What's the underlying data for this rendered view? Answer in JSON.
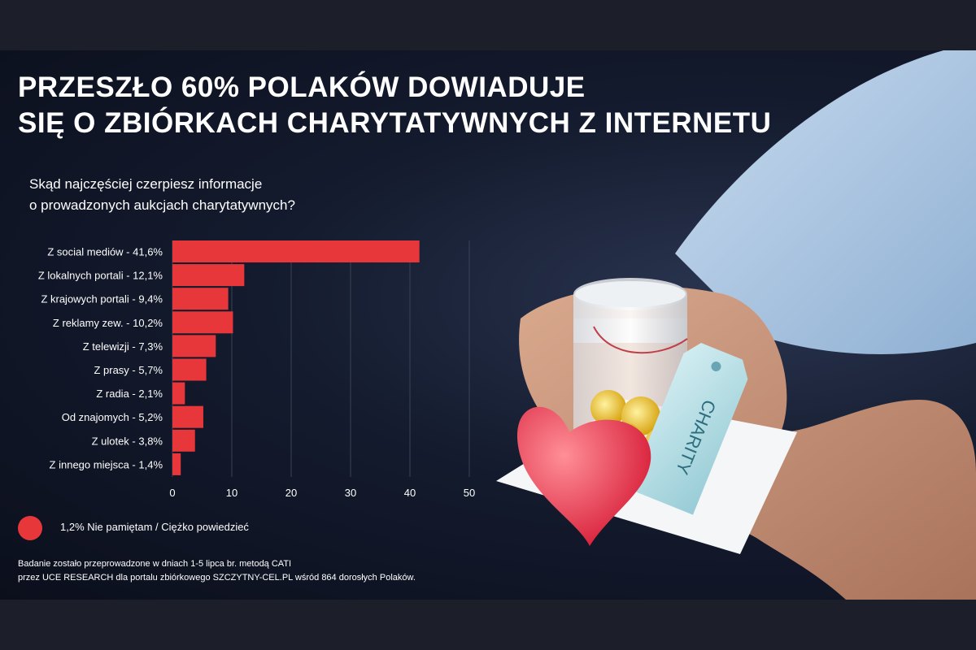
{
  "title": {
    "line1": "PRZESZŁO 60% POLAKÓW DOWIADUJE",
    "line2": "SIĘ O ZBIÓRKACH CHARYTATYWNYCH Z INTERNETU"
  },
  "question": {
    "line1": "Skąd najczęściej czerpiesz informacje",
    "line2": "o prowadzonych aukcjach charytatywnych?"
  },
  "chart_data": {
    "type": "bar",
    "orientation": "horizontal",
    "categories": [
      "Z social mediów - 41,6%",
      "Z lokalnych portali - 12,1%",
      "Z krajowych portali - 9,4%",
      "Z reklamy zew. - 10,2%",
      "Z telewizji - 7,3%",
      "Z prasy - 5,7%",
      "Z radia - 2,1%",
      "Od znajomych - 5,2%",
      "Z  ulotek - 3,8%",
      "Z innego miejsca - 1,4%"
    ],
    "values": [
      41.6,
      12.1,
      9.4,
      10.2,
      7.3,
      5.7,
      2.1,
      5.2,
      3.8,
      1.4
    ],
    "xlim": [
      0,
      50
    ],
    "xticks": [
      0,
      10,
      20,
      30,
      40,
      50
    ],
    "grid": true,
    "bar_color": "#e8373a",
    "grid_color": "#3a4256"
  },
  "legend": {
    "text": "1,2%  Nie pamiętam / Ciężko powiedzieć",
    "color": "#e8373a"
  },
  "footnote": {
    "line1": "Badanie zostało przeprowadzone w dniach 1-5 lipca br. metodą CATI",
    "line2": "przez UCE RESEARCH dla portalu zbiórkowego SZCZYTNY-CEL.PL wśród 864 dorosłych Polaków."
  },
  "illustration": {
    "tag_text": "CHARITY"
  },
  "colors": {
    "background": "#0b0f1c",
    "accent": "#e8373a",
    "text": "#ffffff"
  }
}
